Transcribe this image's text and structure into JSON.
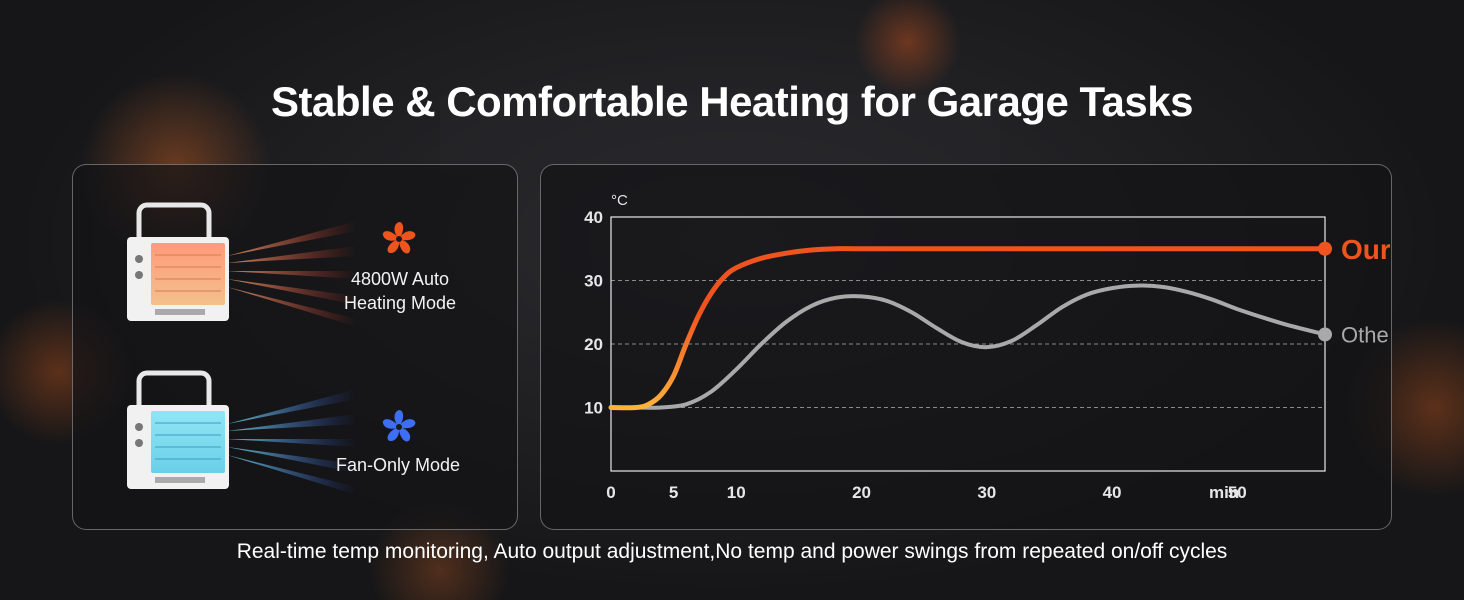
{
  "title": "Stable & Comfortable Heating for Garage Tasks",
  "modes": [
    {
      "label_line1": "4800W Auto",
      "label_line2": "Heating Mode",
      "icon": "fan-icon",
      "color": "#f0541e"
    },
    {
      "label_line1": "Fan-Only Mode",
      "label_line2": "",
      "icon": "fan-icon",
      "color": "#3d6ef5"
    }
  ],
  "footer": "Real-time temp monitoring, Auto output adjustment,No temp and power swings from repeated on/off cycles",
  "chart_data": {
    "type": "line",
    "ylabel": "°C",
    "xlabel": "min",
    "xlim": [
      0,
      57
    ],
    "ylim": [
      0,
      40
    ],
    "x_ticks": [
      0,
      5,
      10,
      20,
      30,
      40,
      50
    ],
    "y_ticks": [
      10,
      20,
      30,
      40
    ],
    "grid": "horizontal dashed",
    "legend": "inline at line ends",
    "series": [
      {
        "name": "Ours",
        "color": "#f0541e",
        "x": [
          0,
          2,
          3,
          4,
          5,
          6,
          7,
          8,
          9,
          10,
          12,
          14,
          16,
          18,
          20,
          30,
          40,
          50,
          57
        ],
        "y": [
          10,
          10,
          10.5,
          12,
          15,
          20,
          24.5,
          28,
          30.5,
          32,
          33.5,
          34.3,
          34.8,
          35,
          35,
          35,
          35,
          35,
          35
        ]
      },
      {
        "name": "Others",
        "color": "#a9a9a9",
        "x": [
          0,
          2,
          4,
          6,
          8,
          10,
          12,
          14,
          16,
          18,
          20,
          22,
          24,
          26,
          28,
          30,
          32,
          34,
          36,
          38,
          40,
          42,
          44,
          46,
          48,
          50,
          52,
          54,
          57
        ],
        "y": [
          10,
          10,
          10,
          10.5,
          12.5,
          16,
          20,
          23.5,
          26,
          27.3,
          27.5,
          26.8,
          25,
          22.5,
          20.3,
          19.5,
          20.5,
          23,
          25.8,
          27.8,
          28.8,
          29.2,
          29,
          28.2,
          27,
          25.5,
          24.2,
          23,
          21.5
        ]
      }
    ]
  }
}
